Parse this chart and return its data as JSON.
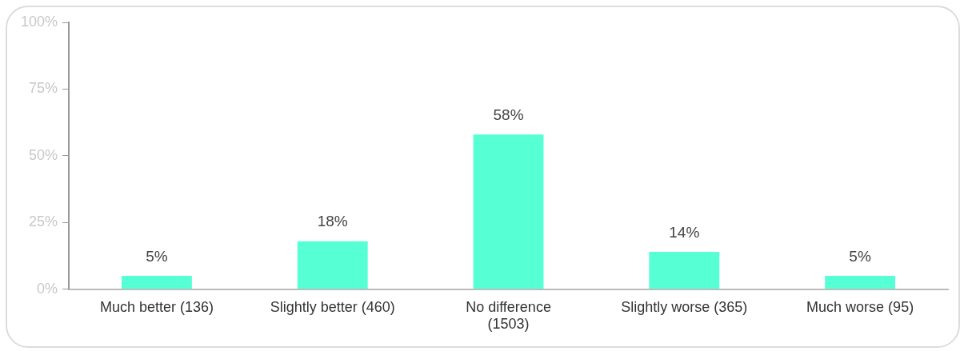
{
  "chart_data": {
    "type": "bar",
    "categories": [
      "Much better (136)",
      "Slightly better (460)",
      "No difference (1503)",
      "Slightly worse (365)",
      "Much worse (95)"
    ],
    "values": [
      5,
      18,
      58,
      14,
      5
    ],
    "value_labels": [
      "5%",
      "18%",
      "58%",
      "14%",
      "5%"
    ],
    "color": "#57ffd5",
    "ylim": [
      0,
      100
    ],
    "yticks": [
      {
        "value": 0,
        "label": "0%"
      },
      {
        "value": 25,
        "label": "25%"
      },
      {
        "value": 50,
        "label": "50%"
      },
      {
        "value": 75,
        "label": "75%"
      },
      {
        "value": 100,
        "label": "100%"
      }
    ],
    "grid": false,
    "legend": false
  }
}
